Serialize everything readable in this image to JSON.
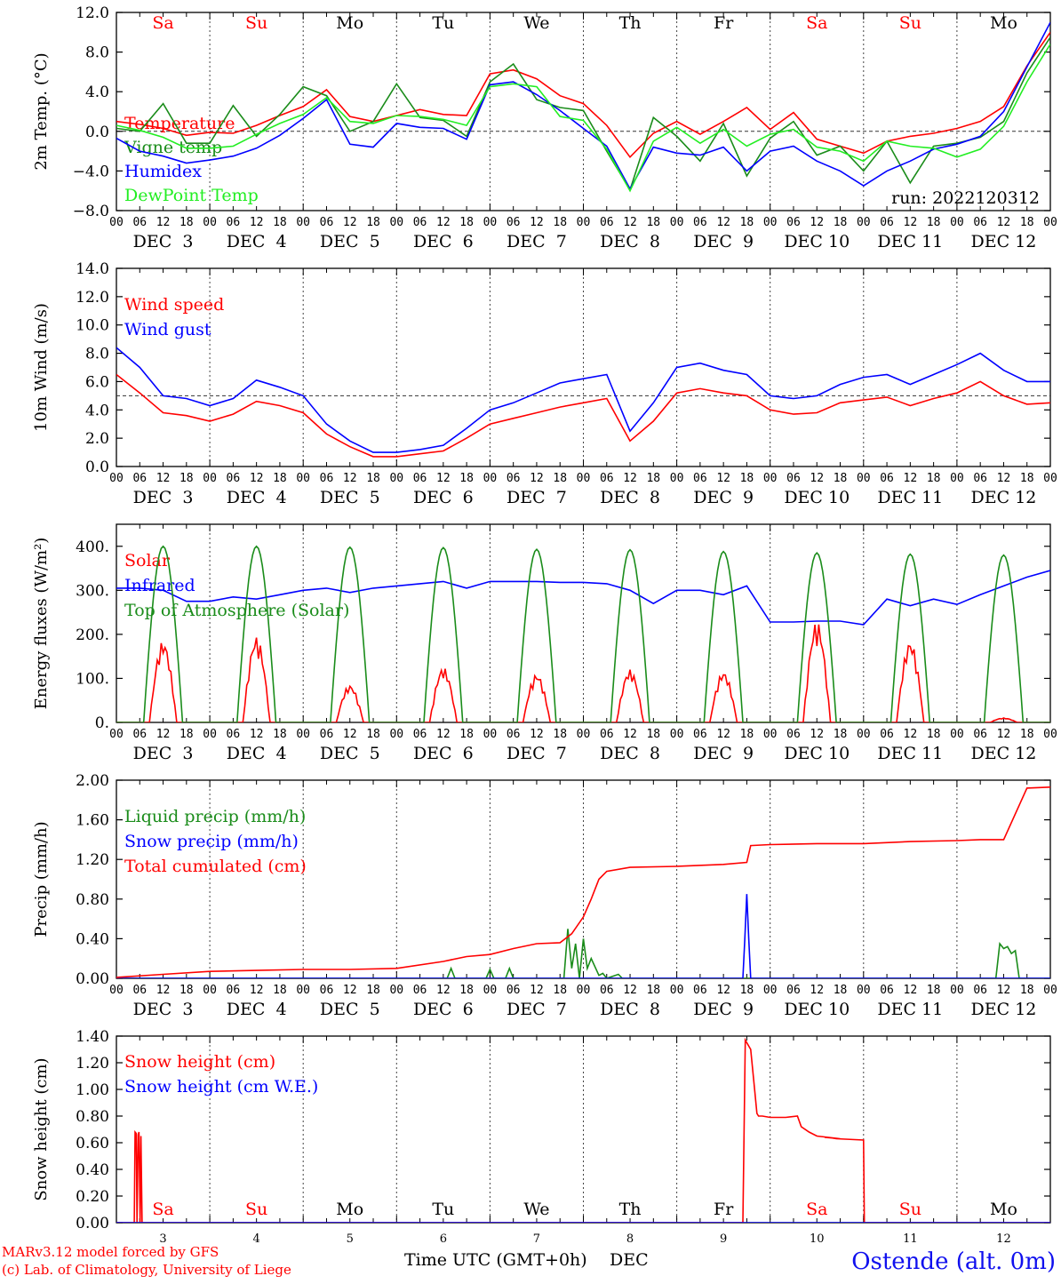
{
  "colors": {
    "red": "#ff0000",
    "darkgreen": "#1a8c1a",
    "blue": "#0000ff",
    "lightgreen": "#22ee22",
    "axis": "#000000",
    "weekend": "#ff0000",
    "weekday": "#000000",
    "footer_station": "#1010ee"
  },
  "days": {
    "weekday_labels": [
      "Sa",
      "Su",
      "Mo",
      "Tu",
      "We",
      "Th",
      "Fr",
      "Sa",
      "Su",
      "Mo"
    ],
    "weekend_flags": [
      true,
      true,
      false,
      false,
      false,
      false,
      false,
      true,
      true,
      false
    ],
    "date_labels": [
      "DEC  3",
      "DEC  4",
      "DEC  5",
      "DEC  6",
      "DEC  7",
      "DEC  8",
      "DEC  9",
      "DEC 10",
      "DEC 11",
      "DEC 12"
    ],
    "bottom_day_numbers": [
      "3",
      "4",
      "5",
      "6",
      "7",
      "8",
      "9",
      "10",
      "11",
      "12"
    ],
    "hour_ticks": [
      "00",
      "06",
      "12",
      "18"
    ],
    "final_tick": "00"
  },
  "footer": {
    "model_line": "MARv3.12 model forced by GFS",
    "copyright_line": "(c) Lab. of Climatology, University of Liege",
    "xaxis_label": "Time UTC (GMT+0h)",
    "xaxis_month": "DEC",
    "station": "Ostende (alt. 0m)"
  },
  "chart_data": [
    {
      "id": "temp",
      "type": "line",
      "ylabel": "2m Temp. (°C)",
      "ylim": [
        -8,
        12
      ],
      "yticks": [
        -8,
        -4,
        0,
        4,
        8,
        12
      ],
      "ytick_labels": [
        "−8.0",
        "−4.0",
        "0.0",
        "4.0",
        "8.0",
        "12.0"
      ],
      "reference_line": 0,
      "run_label": "run: 2022120312",
      "x_unit": "hours from DEC 3 00 UTC",
      "series": [
        {
          "name": "Temperature",
          "color": "red",
          "x": [
            0,
            6,
            12,
            18,
            24,
            30,
            36,
            42,
            48,
            54,
            60,
            66,
            72,
            78,
            84,
            90,
            96,
            102,
            108,
            114,
            120,
            126,
            132,
            138,
            144,
            150,
            156,
            162,
            168,
            174,
            180,
            186,
            192,
            198,
            204,
            210,
            216,
            222,
            228,
            234,
            240
          ],
          "y": [
            1.0,
            0.7,
            0.3,
            -0.4,
            -0.1,
            -0.2,
            0.6,
            1.6,
            2.5,
            4.2,
            1.5,
            1.0,
            1.6,
            2.2,
            1.7,
            1.6,
            5.8,
            6.2,
            5.3,
            3.6,
            2.8,
            0.6,
            -2.6,
            -0.2,
            1.0,
            -0.3,
            1.0,
            2.4,
            0.2,
            1.9,
            -0.8,
            -1.5,
            -2.2,
            -1.0,
            -0.5,
            -0.2,
            0.3,
            1.0,
            2.5,
            6.6,
            10.0
          ]
        },
        {
          "name": "Vigne temp",
          "color": "darkgreen",
          "x": [
            0,
            6,
            12,
            18,
            24,
            30,
            36,
            42,
            48,
            54,
            60,
            66,
            72,
            78,
            84,
            90,
            96,
            102,
            108,
            114,
            120,
            126,
            132,
            138,
            144,
            150,
            156,
            162,
            168,
            174,
            180,
            186,
            192,
            198,
            204,
            210,
            216,
            222,
            228,
            234,
            240
          ],
          "y": [
            0.3,
            0.0,
            2.8,
            -1.2,
            -1.2,
            2.6,
            -0.5,
            1.7,
            4.5,
            3.6,
            0.0,
            1.0,
            4.8,
            1.4,
            1.1,
            -0.5,
            5.0,
            6.8,
            3.2,
            2.4,
            2.1,
            -2.0,
            -5.9,
            1.4,
            -0.5,
            -3.0,
            0.8,
            -4.5,
            -0.7,
            1.0,
            -2.4,
            -1.5,
            -4.0,
            -1.0,
            -5.2,
            -1.5,
            -1.2,
            -0.6,
            1.0,
            5.9,
            9.5
          ]
        },
        {
          "name": "Humidex",
          "color": "blue",
          "x": [
            0,
            6,
            12,
            18,
            24,
            30,
            36,
            42,
            48,
            54,
            60,
            66,
            72,
            78,
            84,
            90,
            96,
            102,
            108,
            114,
            120,
            126,
            132,
            138,
            144,
            150,
            156,
            162,
            168,
            174,
            180,
            186,
            192,
            198,
            204,
            210,
            216,
            222,
            228,
            234,
            240
          ],
          "y": [
            -0.7,
            -2.0,
            -2.5,
            -3.2,
            -2.9,
            -2.5,
            -1.7,
            -0.4,
            1.3,
            3.2,
            -1.3,
            -1.6,
            0.8,
            0.4,
            0.3,
            -0.8,
            4.7,
            5.0,
            3.7,
            2.1,
            0.3,
            -1.5,
            -5.8,
            -1.6,
            -2.2,
            -2.4,
            -1.6,
            -4.0,
            -2.0,
            -1.5,
            -3.0,
            -4.0,
            -5.5,
            -4.0,
            -3.0,
            -1.8,
            -1.3,
            -0.5,
            2.0,
            6.5,
            11.0
          ]
        },
        {
          "name": "DewPoint Temp",
          "color": "lightgreen",
          "x": [
            0,
            6,
            12,
            18,
            24,
            30,
            36,
            42,
            48,
            54,
            60,
            66,
            72,
            78,
            84,
            90,
            96,
            102,
            108,
            114,
            120,
            126,
            132,
            138,
            144,
            150,
            156,
            162,
            168,
            174,
            180,
            186,
            192,
            198,
            204,
            210,
            216,
            222,
            228,
            234,
            240
          ],
          "y": [
            0.6,
            0.1,
            -0.6,
            -1.7,
            -1.7,
            -1.5,
            -0.3,
            0.8,
            1.7,
            3.4,
            1.0,
            0.8,
            1.6,
            1.5,
            1.2,
            0.6,
            4.5,
            4.8,
            4.5,
            1.5,
            1.1,
            -1.8,
            -6.0,
            -1.0,
            0.4,
            -1.2,
            0.2,
            -1.5,
            -0.3,
            0.2,
            -1.6,
            -2.0,
            -3.0,
            -1.0,
            -1.5,
            -1.7,
            -2.6,
            -1.8,
            0.5,
            5.0,
            8.8
          ]
        }
      ]
    },
    {
      "id": "wind",
      "type": "line",
      "ylabel": "10m Wind (m/s)",
      "ylim": [
        0,
        14
      ],
      "yticks": [
        0,
        2,
        4,
        6,
        8,
        10,
        12,
        14
      ],
      "ytick_labels": [
        "0.0",
        "2.0",
        "4.0",
        "6.0",
        "8.0",
        "10.0",
        "12.0",
        "14.0"
      ],
      "reference_line": 5,
      "x_unit": "hours from DEC 3 00 UTC",
      "series": [
        {
          "name": "Wind speed",
          "color": "red",
          "x": [
            0,
            6,
            12,
            18,
            24,
            30,
            36,
            42,
            48,
            54,
            60,
            66,
            72,
            78,
            84,
            90,
            96,
            102,
            108,
            114,
            120,
            126,
            132,
            138,
            144,
            150,
            156,
            162,
            168,
            174,
            180,
            186,
            192,
            198,
            204,
            210,
            216,
            222,
            228,
            234,
            240
          ],
          "y": [
            6.5,
            5.2,
            3.8,
            3.6,
            3.2,
            3.7,
            4.6,
            4.3,
            3.8,
            2.3,
            1.4,
            0.7,
            0.7,
            0.9,
            1.1,
            2.0,
            3.0,
            3.4,
            3.8,
            4.2,
            4.5,
            4.8,
            1.8,
            3.2,
            5.2,
            5.5,
            5.2,
            5.0,
            4.0,
            3.7,
            3.8,
            4.5,
            4.7,
            4.9,
            4.3,
            4.8,
            5.2,
            6.0,
            5.0,
            4.4,
            4.5
          ]
        },
        {
          "name": "Wind gust",
          "color": "blue",
          "x": [
            0,
            6,
            12,
            18,
            24,
            30,
            36,
            42,
            48,
            54,
            60,
            66,
            72,
            78,
            84,
            90,
            96,
            102,
            108,
            114,
            120,
            126,
            132,
            138,
            144,
            150,
            156,
            162,
            168,
            174,
            180,
            186,
            192,
            198,
            204,
            210,
            216,
            222,
            228,
            234,
            240
          ],
          "y": [
            8.4,
            7.0,
            5.0,
            4.8,
            4.3,
            4.8,
            6.1,
            5.6,
            5.0,
            3.0,
            1.8,
            1.0,
            1.0,
            1.2,
            1.5,
            2.7,
            4.0,
            4.5,
            5.2,
            5.9,
            6.2,
            6.5,
            2.5,
            4.5,
            7.0,
            7.3,
            6.8,
            6.5,
            5.0,
            4.8,
            5.0,
            5.8,
            6.3,
            6.5,
            5.8,
            6.5,
            7.2,
            8.0,
            6.8,
            6.0,
            6.0
          ]
        }
      ]
    },
    {
      "id": "flux",
      "type": "line",
      "ylabel": "Energy fluxes (W/m²)",
      "ylim": [
        0,
        450
      ],
      "yticks": [
        0,
        100,
        200,
        300,
        400
      ],
      "ytick_labels": [
        "0.",
        "100.",
        "200.",
        "300.",
        "400."
      ],
      "x_unit": "hours from DEC 3 00 UTC",
      "series": [
        {
          "name": "Solar",
          "color": "red",
          "daily_peak": [
            185,
            195,
            85,
            125,
            110,
            120,
            115,
            230,
            185,
            10
          ]
        },
        {
          "name": "Infrared",
          "color": "blue",
          "x": [
            0,
            6,
            12,
            18,
            24,
            30,
            36,
            42,
            48,
            54,
            60,
            66,
            72,
            78,
            84,
            90,
            96,
            102,
            108,
            114,
            120,
            126,
            132,
            138,
            144,
            150,
            156,
            162,
            168,
            174,
            180,
            186,
            192,
            198,
            204,
            210,
            216,
            222,
            228,
            234,
            240
          ],
          "y": [
            305,
            305,
            300,
            275,
            275,
            285,
            280,
            290,
            300,
            305,
            295,
            305,
            310,
            315,
            320,
            305,
            320,
            320,
            320,
            318,
            318,
            315,
            300,
            270,
            300,
            300,
            290,
            310,
            228,
            228,
            230,
            230,
            222,
            280,
            265,
            280,
            268,
            290,
            310,
            330,
            345
          ]
        },
        {
          "name": "Top of Atmosphere (Solar)",
          "color": "darkgreen",
          "daily_peak": [
            400,
            400,
            398,
            397,
            393,
            392,
            388,
            385,
            382,
            380
          ]
        }
      ]
    },
    {
      "id": "precip",
      "type": "line",
      "ylabel": "Precip (mm/h)",
      "ylim": [
        0,
        2.0
      ],
      "yticks": [
        0,
        0.4,
        0.8,
        1.2,
        1.6,
        2.0
      ],
      "ytick_labels": [
        "0.00",
        "0.40",
        "0.80",
        "1.20",
        "1.60",
        "2.00"
      ],
      "x_unit": "hours from DEC 3 00 UTC",
      "series": [
        {
          "name": "Liquid precip (mm/h)",
          "color": "darkgreen",
          "x": [
            0,
            85,
            86,
            87,
            95,
            96,
            97,
            100,
            101,
            102,
            115,
            116,
            117,
            118,
            119,
            120,
            121,
            122,
            124,
            125,
            126,
            129,
            130,
            226,
            227,
            228,
            229,
            230,
            231,
            232,
            240
          ],
          "y": [
            0,
            0,
            0.1,
            0,
            0,
            0.09,
            0,
            0,
            0.1,
            0,
            0,
            0.5,
            0.1,
            0.35,
            0,
            0.4,
            0.1,
            0.2,
            0.03,
            0.05,
            0,
            0.04,
            0,
            0,
            0.35,
            0.3,
            0.32,
            0.25,
            0.28,
            0,
            0
          ]
        },
        {
          "name": "Snow precip (mm/h)",
          "color": "blue",
          "x": [
            0,
            161,
            161.5,
            162,
            162.5,
            163,
            240
          ],
          "y": [
            0,
            0,
            0.4,
            0.85,
            0.4,
            0,
            0
          ]
        },
        {
          "name": "Total cumulated (cm)",
          "color": "red",
          "x": [
            0,
            12,
            24,
            36,
            48,
            60,
            72,
            84,
            90,
            96,
            102,
            108,
            114,
            117,
            120,
            122,
            124,
            126,
            132,
            144,
            156,
            162,
            163,
            168,
            180,
            192,
            204,
            216,
            222,
            228,
            234,
            240
          ],
          "y": [
            0.01,
            0.04,
            0.07,
            0.08,
            0.09,
            0.09,
            0.1,
            0.17,
            0.22,
            0.24,
            0.3,
            0.35,
            0.36,
            0.45,
            0.62,
            0.8,
            1.0,
            1.08,
            1.12,
            1.13,
            1.15,
            1.17,
            1.34,
            1.35,
            1.36,
            1.36,
            1.38,
            1.39,
            1.4,
            1.4,
            1.92,
            1.93
          ]
        }
      ]
    },
    {
      "id": "snow",
      "type": "line",
      "ylabel": "Snow height (cm)",
      "ylim": [
        0,
        1.4
      ],
      "yticks": [
        0,
        0.2,
        0.4,
        0.6,
        0.8,
        1.0,
        1.2,
        1.4
      ],
      "ytick_labels": [
        "0.00",
        "0.20",
        "0.40",
        "0.60",
        "0.80",
        "1.00",
        "1.20",
        "1.40"
      ],
      "x_unit": "hours from DEC 3 00 UTC",
      "series": [
        {
          "name": "Snow height (cm)",
          "color": "red",
          "x": [
            0,
            4.6,
            4.8,
            5.1,
            5.3,
            5.6,
            5.8,
            6.1,
            6.3,
            6.6,
            161,
            161.6,
            163,
            164,
            164.6,
            165,
            166,
            168,
            170,
            172,
            175,
            176,
            178,
            180,
            186,
            182,
            183,
            185,
            192,
            192.2,
            240
          ],
          "y": [
            0,
            0,
            0.68,
            0.67,
            0,
            0.66,
            0.68,
            0,
            0.65,
            0,
            0,
            1.37,
            1.3,
            1.0,
            0.82,
            0.8,
            0.8,
            0.79,
            0.79,
            0.79,
            0.8,
            0.72,
            0.68,
            0.65,
            0.63,
            0.64,
            0.64,
            0.63,
            0.62,
            0,
            0
          ]
        },
        {
          "name": "Snow height (cm W.E.)",
          "color": "blue",
          "x": [
            0,
            240
          ],
          "y": [
            0,
            0
          ]
        }
      ]
    }
  ]
}
